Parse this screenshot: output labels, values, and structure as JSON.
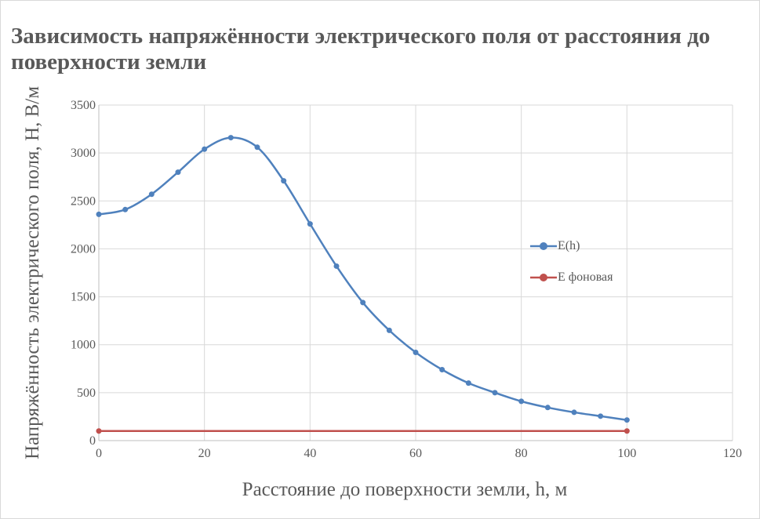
{
  "chart_data": {
    "type": "line",
    "title": "Зависимость напряжённости электрического поля от расстояния до поверхности земли",
    "xlabel": "Расстояние до поверхности земли, h, м",
    "ylabel": "Напряжённость электрического поля, H, В/м",
    "xlim": [
      0,
      120
    ],
    "ylim": [
      0,
      3500
    ],
    "xticks": [
      0,
      20,
      40,
      60,
      80,
      100,
      120
    ],
    "yticks": [
      0,
      500,
      1000,
      1500,
      2000,
      2500,
      3000,
      3500
    ],
    "grid": true,
    "legend_position": "right",
    "series": [
      {
        "name": "E(h)",
        "color": "#4f81bd",
        "x": [
          0,
          5,
          10,
          15,
          20,
          25,
          30,
          35,
          40,
          45,
          50,
          55,
          60,
          65,
          70,
          75,
          80,
          85,
          90,
          95,
          100
        ],
        "y": [
          2360,
          2410,
          2570,
          2800,
          3040,
          3160,
          3060,
          2710,
          2260,
          1820,
          1440,
          1150,
          920,
          740,
          600,
          500,
          410,
          345,
          295,
          255,
          215
        ]
      },
      {
        "name": "E фоновая",
        "color": "#c0504d",
        "x": [
          0,
          100
        ],
        "y": [
          100,
          100
        ]
      }
    ]
  }
}
